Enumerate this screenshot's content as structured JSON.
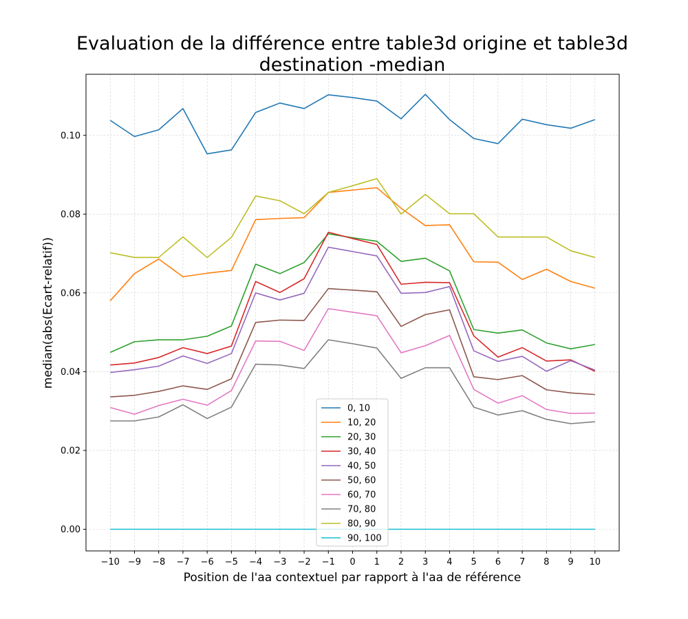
{
  "chart_data": {
    "type": "line",
    "title": [
      "Evaluation de la différence entre table3d origine et table3d",
      "destination -median"
    ],
    "xlabel": "Position de l'aa contextuel par rapport à l'aa de référence",
    "ylabel": "median(abs(Ecart-relatif))",
    "x": [
      -10,
      -9,
      -8,
      -7,
      -6,
      -5,
      -4,
      -3,
      -2,
      -1,
      0,
      1,
      2,
      3,
      4,
      5,
      6,
      7,
      8,
      9,
      10
    ],
    "x_tick_labels": [
      "−10",
      "−9",
      "−8",
      "−7",
      "−6",
      "−5",
      "−4",
      "−3",
      "−2",
      "−1",
      "0",
      "1",
      "2",
      "3",
      "4",
      "5",
      "6",
      "7",
      "8",
      "9",
      "10"
    ],
    "xlim": [
      -11,
      11
    ],
    "ylim": [
      -0.0055,
      0.1155
    ],
    "y_ticks": [
      0.0,
      0.02,
      0.04,
      0.06,
      0.08,
      0.1
    ],
    "y_tick_labels": [
      "0.00",
      "0.02",
      "0.04",
      "0.06",
      "0.08",
      "0.10"
    ],
    "grid": true,
    "legend_position": "lower-center",
    "series": [
      {
        "name": "0, 10",
        "color": "#1f77b4",
        "values": [
          0.1038,
          0.0997,
          0.1014,
          0.1068,
          0.0953,
          0.0963,
          0.1058,
          0.1082,
          0.1068,
          0.1103,
          0.1096,
          0.1087,
          0.1042,
          0.1104,
          0.104,
          0.0992,
          0.0979,
          0.1041,
          0.1027,
          0.1018,
          0.104
        ]
      },
      {
        "name": "10, 20",
        "color": "#ff7f0e",
        "values": [
          0.058,
          0.0649,
          0.0686,
          0.0641,
          0.065,
          0.0657,
          0.0786,
          0.0789,
          0.0791,
          0.0855,
          0.0861,
          0.0867,
          0.0815,
          0.0771,
          0.0773,
          0.0679,
          0.0678,
          0.0634,
          0.066,
          0.0629,
          0.0612
        ]
      },
      {
        "name": "20, 30",
        "color": "#2ca02c",
        "values": [
          0.0449,
          0.0476,
          0.0481,
          0.0481,
          0.049,
          0.0516,
          0.0673,
          0.0649,
          0.0677,
          0.075,
          0.074,
          0.0731,
          0.068,
          0.0688,
          0.0656,
          0.0507,
          0.0498,
          0.0506,
          0.0473,
          0.0458,
          0.0469
        ]
      },
      {
        "name": "30, 40",
        "color": "#d62728",
        "values": [
          0.0417,
          0.0422,
          0.0436,
          0.0461,
          0.0446,
          0.0465,
          0.0629,
          0.0601,
          0.0636,
          0.0754,
          0.0738,
          0.0723,
          0.0622,
          0.0627,
          0.0626,
          0.0491,
          0.0437,
          0.0461,
          0.0427,
          0.043,
          0.0401
        ]
      },
      {
        "name": "40, 50",
        "color": "#9467bd",
        "values": [
          0.0398,
          0.0405,
          0.0414,
          0.044,
          0.0421,
          0.0446,
          0.06,
          0.0582,
          0.0599,
          0.0716,
          0.0705,
          0.0694,
          0.0599,
          0.0601,
          0.0616,
          0.0453,
          0.0426,
          0.0439,
          0.0401,
          0.0428,
          0.0404
        ]
      },
      {
        "name": "50, 60",
        "color": "#8c564b",
        "values": [
          0.0336,
          0.034,
          0.035,
          0.0364,
          0.0355,
          0.0382,
          0.0525,
          0.0531,
          0.053,
          0.0611,
          0.0607,
          0.0603,
          0.0515,
          0.0545,
          0.0557,
          0.0387,
          0.038,
          0.039,
          0.0354,
          0.0346,
          0.0342
        ]
      },
      {
        "name": "60, 70",
        "color": "#e377c2",
        "values": [
          0.0309,
          0.0292,
          0.0314,
          0.033,
          0.0315,
          0.0352,
          0.0478,
          0.0477,
          0.0454,
          0.056,
          0.0551,
          0.0542,
          0.0448,
          0.0466,
          0.0492,
          0.0355,
          0.032,
          0.0339,
          0.0304,
          0.0294,
          0.0295
        ]
      },
      {
        "name": "70, 80",
        "color": "#7f7f7f",
        "values": [
          0.0275,
          0.0275,
          0.0285,
          0.0316,
          0.0281,
          0.031,
          0.0419,
          0.0417,
          0.0408,
          0.0481,
          0.0471,
          0.046,
          0.0383,
          0.041,
          0.041,
          0.031,
          0.029,
          0.0301,
          0.0279,
          0.0268,
          0.0273
        ]
      },
      {
        "name": "80, 90",
        "color": "#bcbd22",
        "values": [
          0.0702,
          0.069,
          0.069,
          0.0742,
          0.069,
          0.0741,
          0.0846,
          0.0834,
          0.0801,
          0.0855,
          0.0872,
          0.089,
          0.08,
          0.085,
          0.0801,
          0.0801,
          0.0742,
          0.0742,
          0.0742,
          0.0707,
          0.069
        ]
      },
      {
        "name": "90, 100",
        "color": "#17becf",
        "values": [
          0,
          0,
          0,
          0,
          0,
          0,
          0,
          0,
          0,
          0,
          0,
          0,
          0,
          0,
          0,
          0,
          0,
          0,
          0,
          0,
          0
        ]
      }
    ]
  }
}
